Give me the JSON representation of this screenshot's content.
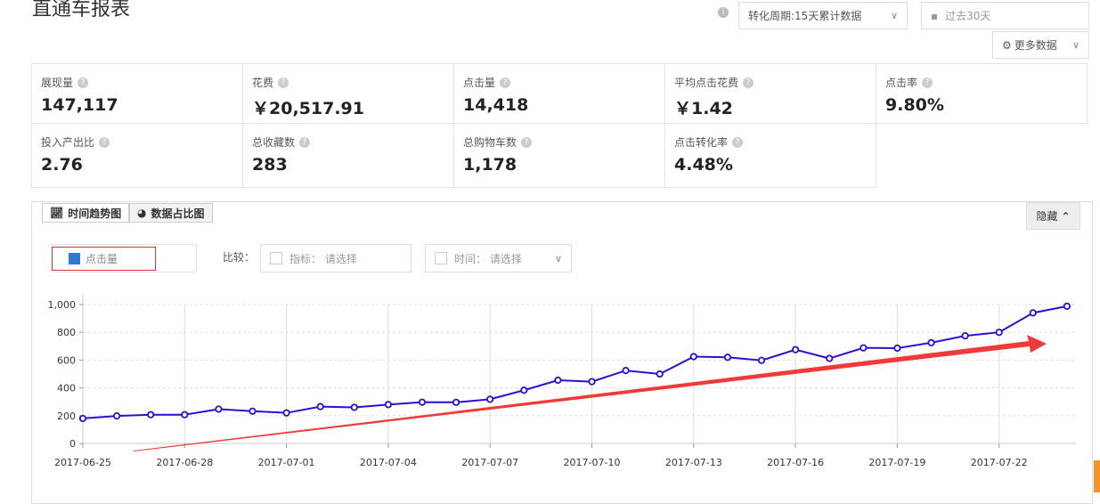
{
  "header": {
    "title": "直通车报表",
    "conversion_period": "转化周期:15天累计数据",
    "date_range": "过去30天",
    "more_data": "更多数据"
  },
  "metrics": [
    {
      "label": "展现量",
      "value": "147,117"
    },
    {
      "label": "花费",
      "value": "￥20,517.91"
    },
    {
      "label": "点击量",
      "value": "14,418"
    },
    {
      "label": "平均点击花费",
      "value": "￥1.42"
    },
    {
      "label": "点击率",
      "value": "9.80%"
    },
    {
      "label": "投入产出比",
      "value": "2.76"
    },
    {
      "label": "总收藏数",
      "value": "283"
    },
    {
      "label": "总购物车数",
      "value": "1,178"
    },
    {
      "label": "点击转化率",
      "value": "4.48%"
    }
  ],
  "panel": {
    "tab_trend": "时间趋势图",
    "tab_share": "数据占比图",
    "hide": "隐藏",
    "legend": "点击量",
    "compare": "比较：",
    "indicator": "指标： 请选择",
    "time": "时间： 请选择"
  },
  "colors": {
    "line": "#2b0fd6",
    "arrow": "#f03a3a",
    "legend": "#2d7bd0"
  },
  "chart_data": {
    "type": "line",
    "x": [
      "2017-06-25",
      "2017-06-26",
      "2017-06-27",
      "2017-06-28",
      "2017-06-29",
      "2017-06-30",
      "2017-07-01",
      "2017-07-02",
      "2017-07-03",
      "2017-07-04",
      "2017-07-05",
      "2017-07-06",
      "2017-07-07",
      "2017-07-08",
      "2017-07-09",
      "2017-07-10",
      "2017-07-11",
      "2017-07-12",
      "2017-07-13",
      "2017-07-14",
      "2017-07-15",
      "2017-07-16",
      "2017-07-17",
      "2017-07-18",
      "2017-07-19",
      "2017-07-20",
      "2017-07-21",
      "2017-07-22",
      "2017-07-23",
      "2017-07-24"
    ],
    "series": [
      {
        "name": "点击量",
        "values": [
          180,
          198,
          207,
          207,
          247,
          232,
          220,
          265,
          260,
          280,
          297,
          296,
          318,
          383,
          455,
          445,
          525,
          500,
          625,
          620,
          598,
          675,
          612,
          688,
          686,
          725,
          775,
          800,
          940,
          988
        ]
      }
    ],
    "yticks": [
      "0",
      "200",
      "400",
      "600",
      "800",
      "1,000"
    ],
    "xticks": [
      "2017-06-25",
      "2017-06-28",
      "2017-07-01",
      "2017-07-04",
      "2017-07-07",
      "2017-07-10",
      "2017-07-13",
      "2017-07-16",
      "2017-07-19",
      "2017-07-22"
    ],
    "ylim": [
      0,
      1000
    ],
    "grid": true
  }
}
